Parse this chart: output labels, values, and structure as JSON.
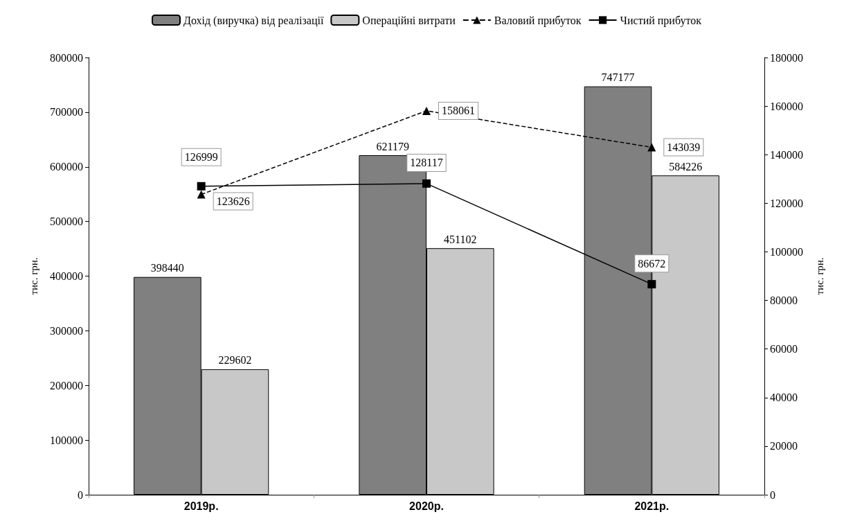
{
  "chart_data": {
    "type": "bar",
    "categories": [
      "2019р.",
      "2020р.",
      "2021р."
    ],
    "ylabel": "тис. грн.",
    "y2label": "тис. грн.",
    "ylim": [
      0,
      800000
    ],
    "yticks": [
      0,
      100000,
      200000,
      300000,
      400000,
      500000,
      600000,
      700000,
      800000
    ],
    "y2lim": [
      0,
      180000
    ],
    "y2ticks": [
      0,
      20000,
      40000,
      60000,
      80000,
      100000,
      120000,
      140000,
      160000,
      180000
    ],
    "grid": false,
    "legend": "top",
    "data_labels": true,
    "series": [
      {
        "name": "Дохід (виручка) від реалізації",
        "color": "#808080",
        "values": [
          398440,
          621179,
          747177
        ]
      },
      {
        "name": "Операційні витрати",
        "color": "#c8c8c8",
        "values": [
          229602,
          451102,
          584226
        ]
      },
      {
        "name": "Валовий прибуток",
        "type": "line",
        "axis": "y2",
        "color": "#000000",
        "marker": "triangle",
        "line_style": "dashed",
        "values": [
          123626,
          158061,
          143039
        ]
      },
      {
        "name": "Чистий прибуток",
        "type": "line",
        "axis": "y2",
        "color": "#000000",
        "marker": "square",
        "line_style": "solid",
        "values": [
          126999,
          128117,
          86672
        ]
      }
    ]
  }
}
